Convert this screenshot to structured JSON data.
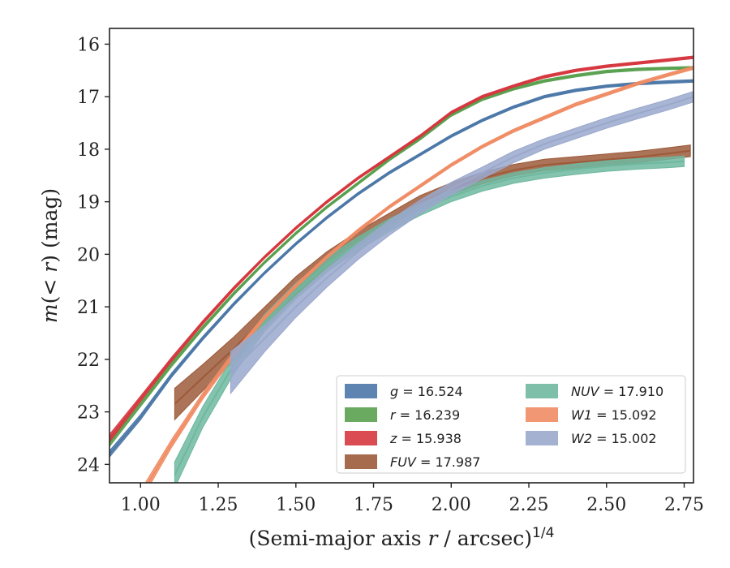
{
  "chart_data": {
    "type": "line",
    "xlabel": "(Semi-major axis r / arcsec)^{1/4}",
    "ylabel": "m(< r) (mag)",
    "xlim": [
      0.9,
      2.78
    ],
    "ylim": [
      24.35,
      15.7
    ],
    "y_inverted": true,
    "xticks": [
      "1.00",
      "1.25",
      "1.50",
      "1.75",
      "2.00",
      "2.25",
      "2.50",
      "2.75"
    ],
    "yticks": [
      "16",
      "17",
      "18",
      "19",
      "20",
      "21",
      "22",
      "23",
      "24"
    ],
    "grid": false,
    "legend_position": "lower-right",
    "series": [
      {
        "name": "g = 16.524",
        "band": "g",
        "value": "16.524",
        "color": "#4c78a8",
        "x": [
          0.9,
          1.0,
          1.1,
          1.2,
          1.3,
          1.4,
          1.5,
          1.6,
          1.7,
          1.8,
          1.9,
          2.0,
          2.1,
          2.2,
          2.3,
          2.4,
          2.5,
          2.6,
          2.7,
          2.78
        ],
        "y": [
          23.8,
          23.1,
          22.3,
          21.6,
          20.95,
          20.35,
          19.8,
          19.3,
          18.85,
          18.45,
          18.1,
          17.75,
          17.45,
          17.2,
          17.0,
          16.88,
          16.8,
          16.75,
          16.72,
          16.7
        ],
        "width": [
          0.12,
          0.1,
          0.08,
          0.07,
          0.06,
          0.05,
          0.05,
          0.05,
          0.05,
          0.05,
          0.05,
          0.05,
          0.05,
          0.05,
          0.05,
          0.05,
          0.05,
          0.05,
          0.05,
          0.05
        ]
      },
      {
        "name": "r = 16.239",
        "band": "r",
        "value": "16.239",
        "color": "#59a14f",
        "x": [
          0.9,
          1.0,
          1.1,
          1.2,
          1.3,
          1.4,
          1.5,
          1.6,
          1.7,
          1.8,
          1.9,
          2.0,
          2.1,
          2.2,
          2.3,
          2.4,
          2.5,
          2.6,
          2.7,
          2.78
        ],
        "y": [
          23.6,
          22.85,
          22.1,
          21.4,
          20.75,
          20.15,
          19.6,
          19.1,
          18.65,
          18.2,
          17.8,
          17.35,
          17.05,
          16.85,
          16.7,
          16.6,
          16.52,
          16.48,
          16.46,
          16.45
        ],
        "width": [
          0.12,
          0.1,
          0.08,
          0.07,
          0.06,
          0.05,
          0.05,
          0.05,
          0.05,
          0.05,
          0.05,
          0.05,
          0.05,
          0.05,
          0.05,
          0.05,
          0.05,
          0.05,
          0.05,
          0.05
        ]
      },
      {
        "name": "z = 15.938",
        "band": "z",
        "value": "15.938",
        "color": "#d6373f",
        "x": [
          0.9,
          1.0,
          1.1,
          1.2,
          1.3,
          1.4,
          1.5,
          1.6,
          1.7,
          1.8,
          1.9,
          2.0,
          2.1,
          2.2,
          2.3,
          2.4,
          2.5,
          2.6,
          2.7,
          2.78
        ],
        "y": [
          23.5,
          22.75,
          22.0,
          21.3,
          20.65,
          20.05,
          19.5,
          19.0,
          18.55,
          18.15,
          17.75,
          17.3,
          17.0,
          16.8,
          16.62,
          16.5,
          16.42,
          16.36,
          16.3,
          16.25
        ],
        "width": [
          0.14,
          0.1,
          0.08,
          0.07,
          0.06,
          0.05,
          0.05,
          0.05,
          0.05,
          0.05,
          0.05,
          0.05,
          0.05,
          0.05,
          0.05,
          0.05,
          0.05,
          0.05,
          0.05,
          0.05
        ]
      },
      {
        "name": "FUV = 17.987",
        "band": "FUV",
        "value": "17.987",
        "color": "#9c5a3a",
        "x": [
          1.11,
          1.2,
          1.3,
          1.4,
          1.5,
          1.6,
          1.7,
          1.8,
          1.9,
          2.0,
          2.1,
          2.2,
          2.3,
          2.4,
          2.5,
          2.6,
          2.7,
          2.77
        ],
        "y": [
          22.85,
          22.35,
          21.8,
          21.2,
          20.6,
          20.1,
          19.7,
          19.35,
          19.0,
          18.75,
          18.55,
          18.4,
          18.3,
          18.25,
          18.2,
          18.15,
          18.08,
          18.03
        ],
        "width": [
          0.6,
          0.5,
          0.45,
          0.4,
          0.35,
          0.3,
          0.28,
          0.26,
          0.24,
          0.22,
          0.22,
          0.22,
          0.22,
          0.22,
          0.22,
          0.22,
          0.22,
          0.22
        ]
      },
      {
        "name": "NUV = 17.910",
        "band": "NUV",
        "value": "17.910",
        "color": "#6fb8a0",
        "x": [
          1.11,
          1.2,
          1.3,
          1.4,
          1.5,
          1.6,
          1.7,
          1.8,
          1.9,
          2.0,
          2.1,
          2.2,
          2.3,
          2.4,
          2.5,
          2.6,
          2.7,
          2.75
        ],
        "y": [
          24.2,
          23.1,
          22.1,
          21.3,
          20.7,
          20.2,
          19.8,
          19.45,
          19.15,
          18.9,
          18.7,
          18.55,
          18.45,
          18.38,
          18.32,
          18.28,
          18.25,
          18.23
        ],
        "width": [
          0.5,
          0.4,
          0.35,
          0.32,
          0.3,
          0.28,
          0.26,
          0.24,
          0.22,
          0.2,
          0.2,
          0.2,
          0.2,
          0.2,
          0.2,
          0.2,
          0.2,
          0.2
        ]
      },
      {
        "name": "W1 = 15.092",
        "band": "W1",
        "value": "15.092",
        "color": "#f08c64",
        "x": [
          1.0,
          1.1,
          1.2,
          1.3,
          1.4,
          1.5,
          1.6,
          1.7,
          1.8,
          1.9,
          2.0,
          2.1,
          2.2,
          2.3,
          2.4,
          2.5,
          2.6,
          2.7,
          2.78
        ],
        "y": [
          24.6,
          23.6,
          22.7,
          21.9,
          21.2,
          20.6,
          20.05,
          19.55,
          19.1,
          18.7,
          18.3,
          17.95,
          17.65,
          17.4,
          17.15,
          16.95,
          16.75,
          16.58,
          16.45
        ],
        "width": [
          0.2,
          0.15,
          0.12,
          0.1,
          0.08,
          0.07,
          0.06,
          0.06,
          0.06,
          0.06,
          0.06,
          0.06,
          0.06,
          0.06,
          0.06,
          0.06,
          0.06,
          0.06,
          0.06
        ]
      },
      {
        "name": "W2 = 15.002",
        "band": "W2",
        "value": "15.002",
        "color": "#9aa8cc",
        "x": [
          1.29,
          1.4,
          1.5,
          1.6,
          1.7,
          1.8,
          1.9,
          2.0,
          2.1,
          2.2,
          2.3,
          2.4,
          2.5,
          2.6,
          2.7,
          2.78
        ],
        "y": [
          22.25,
          21.6,
          21.0,
          20.45,
          19.95,
          19.5,
          19.1,
          18.75,
          18.45,
          18.15,
          17.9,
          17.7,
          17.5,
          17.32,
          17.15,
          17.0
        ],
        "width": [
          0.8,
          0.5,
          0.4,
          0.35,
          0.3,
          0.28,
          0.26,
          0.24,
          0.22,
          0.22,
          0.2,
          0.2,
          0.2,
          0.2,
          0.2,
          0.2
        ]
      }
    ]
  }
}
